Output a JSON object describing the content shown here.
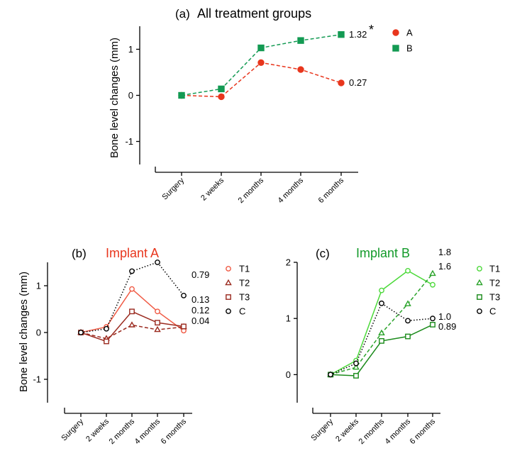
{
  "chart_data": [
    {
      "type": "line",
      "panel_label": "(a)",
      "title": "All treatment groups",
      "ylabel": "Bone level changes (mm)",
      "categories": [
        "Surgery",
        "2 weeks",
        "2 months",
        "4 months",
        "6 months"
      ],
      "ylim": [
        -1.5,
        1.5
      ],
      "yticks": [
        -1,
        0,
        1
      ],
      "series": [
        {
          "name": "A",
          "color": "#e8361d",
          "marker": "circle-filled",
          "line": "dashed",
          "values": [
            0,
            -0.03,
            0.71,
            0.56,
            0.27
          ]
        },
        {
          "name": "B",
          "color": "#139a53",
          "marker": "square-filled",
          "line": "dashed",
          "values": [
            0,
            0.14,
            1.03,
            1.19,
            1.32
          ]
        }
      ],
      "annotations": [
        {
          "text": "1.32",
          "series": 1,
          "point": 4
        },
        {
          "text": "0.27",
          "series": 0,
          "point": 4
        },
        {
          "text": "*",
          "series": 1,
          "point": 4
        }
      ]
    },
    {
      "type": "line",
      "panel_label": "(b)",
      "title": "Implant A",
      "title_color": "#e8361d",
      "ylabel": "Bone level changes (mm)",
      "categories": [
        "Surgery",
        "2 weeks",
        "2 months",
        "4 months",
        "6 months"
      ],
      "ylim": [
        -1.5,
        1.5
      ],
      "yticks": [
        -1,
        0,
        1
      ],
      "series": [
        {
          "name": "T1",
          "color": "#f05a44",
          "marker": "circle-open",
          "line": "solid",
          "values": [
            0,
            0.12,
            0.93,
            0.45,
            0.04
          ]
        },
        {
          "name": "T2",
          "color": "#9a2a1f",
          "marker": "triangle-open",
          "line": "dashed",
          "values": [
            0,
            -0.13,
            0.16,
            0.06,
            0.12
          ]
        },
        {
          "name": "T3",
          "color": "#9a2a1f",
          "marker": "square-open",
          "line": "solid",
          "values": [
            0,
            -0.19,
            0.45,
            0.21,
            0.13
          ]
        },
        {
          "name": "C",
          "color": "#000000",
          "marker": "circle-open",
          "line": "dotted",
          "values": [
            0,
            0.08,
            1.31,
            1.5,
            0.79
          ]
        }
      ],
      "annotations": [
        {
          "text": "0.79",
          "series": 3,
          "point": 4
        },
        {
          "text": "0.13",
          "series": 2,
          "point": 4
        },
        {
          "text": "0.12",
          "series": 1,
          "point": 4
        },
        {
          "text": "0.04",
          "series": 0,
          "point": 4
        }
      ]
    },
    {
      "type": "line",
      "panel_label": "(c)",
      "title": "Implant B",
      "title_color": "#139a2a",
      "categories": [
        "Surgery",
        "2 weeks",
        "2 months",
        "4 months",
        "6 months"
      ],
      "ylim": [
        -0.5,
        2.0
      ],
      "yticks": [
        0,
        1,
        2
      ],
      "series": [
        {
          "name": "T1",
          "color": "#4cd93a",
          "marker": "circle-open",
          "line": "solid",
          "values": [
            0,
            0.25,
            1.5,
            1.85,
            1.6
          ]
        },
        {
          "name": "T2",
          "color": "#2aa32a",
          "marker": "triangle-open",
          "line": "dashed",
          "values": [
            0,
            0.13,
            0.74,
            1.26,
            1.8
          ]
        },
        {
          "name": "T3",
          "color": "#1a8a1a",
          "marker": "square-open",
          "line": "solid",
          "values": [
            0,
            -0.02,
            0.6,
            0.68,
            0.89
          ]
        },
        {
          "name": "C",
          "color": "#000000",
          "marker": "circle-open",
          "line": "dotted",
          "values": [
            0,
            0.2,
            1.27,
            0.96,
            1.0
          ]
        }
      ],
      "annotations": [
        {
          "text": "1.8",
          "series": 1,
          "point": 4
        },
        {
          "text": "1.6",
          "series": 0,
          "point": 4
        },
        {
          "text": "1.0",
          "series": 3,
          "point": 4
        },
        {
          "text": "0.89",
          "series": 2,
          "point": 4
        }
      ]
    }
  ]
}
